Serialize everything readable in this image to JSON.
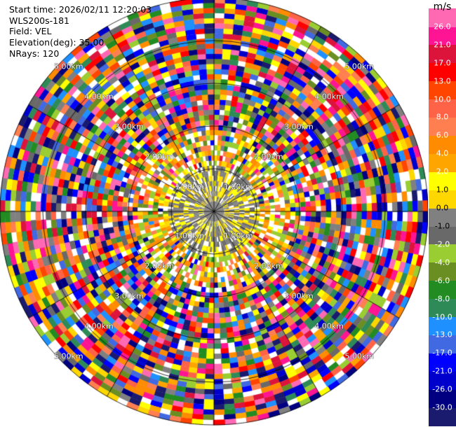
{
  "header": {
    "start_time": "Start time: 2026/02/11 12:20:03",
    "instrument": "WLS200s-181",
    "field": "Field: VEL",
    "elevation": "Elevation(deg): 35.00",
    "nrays": "NRays: 120"
  },
  "range_labels": {
    "r1": "1.00km",
    "r2": "2.00km",
    "r3": "3.00km",
    "r4": "4.00km",
    "r5": "5.00km"
  },
  "colorbar": {
    "unit": "m/s",
    "ticks": [
      "26.0",
      "21.0",
      "17.0",
      "13.0",
      "10.0",
      "8.0",
      "6.0",
      "4.0",
      "2.0",
      "1.0",
      "0.0",
      "-1.0",
      "-2.0",
      "-4.0",
      "-6.0",
      "-8.0",
      "-10.0",
      "-13.0",
      "-17.0",
      "-21.0",
      "-26.0",
      "-30.0"
    ],
    "colors": [
      "#1a1a6e",
      "#000080",
      "#0000cd",
      "#0000ff",
      "#4169e1",
      "#1e90ff",
      "#2e8b57",
      "#228b22",
      "#6b8e23",
      "#9acd32",
      "#696969",
      "#808080",
      "#ffd700",
      "#ffff00",
      "#ffa500",
      "#ff8c00",
      "#ff7f50",
      "#ff6347",
      "#ff4500",
      "#ff0000",
      "#dc143c",
      "#ff1493",
      "#ff69b4"
    ]
  },
  "chart_data": {
    "type": "heatmap",
    "projection": "polar PPI (range-azimuth)",
    "field": "VEL",
    "units": "m/s",
    "n_rays": 120,
    "elevation_deg": 35.0,
    "range_rings_km": [
      1,
      2,
      3,
      4,
      5
    ],
    "color_boundaries": [
      -30.0,
      -26.0,
      -21.0,
      -17.0,
      -13.0,
      -10.0,
      -8.0,
      -6.0,
      -4.0,
      -2.0,
      -1.0,
      0.0,
      1.0,
      2.0,
      4.0,
      6.0,
      8.0,
      10.0,
      13.0,
      17.0,
      21.0,
      26.0
    ],
    "grid": true,
    "colorbar_position": "right"
  }
}
